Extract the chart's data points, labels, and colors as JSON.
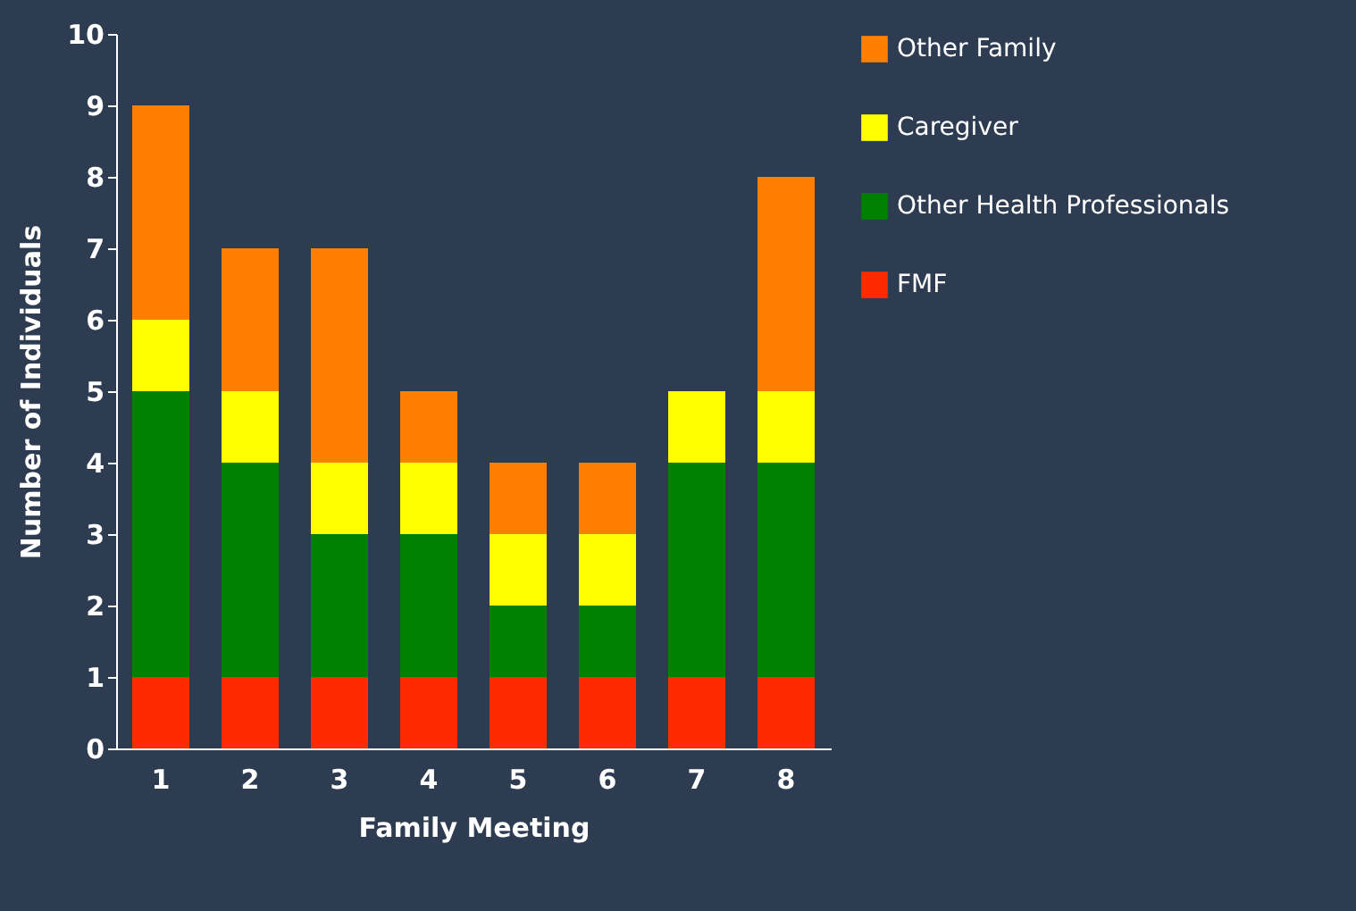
{
  "chart_data": {
    "type": "bar",
    "stacked": true,
    "xlabel": "Family Meeting",
    "ylabel": "Number of Individuals",
    "categories": [
      "1",
      "2",
      "3",
      "4",
      "5",
      "6",
      "7",
      "8"
    ],
    "series": [
      {
        "name": "FMF",
        "color": "#ff2a00",
        "values": [
          1,
          1,
          1,
          1,
          1,
          1,
          1,
          1
        ]
      },
      {
        "name": "Other Health Professionals",
        "color": "#008000",
        "values": [
          4,
          3,
          2,
          2,
          1,
          1,
          3,
          3
        ]
      },
      {
        "name": "Caregiver",
        "color": "#ffff00",
        "values": [
          1,
          1,
          1,
          1,
          1,
          1,
          1,
          1
        ]
      },
      {
        "name": "Other Family",
        "color": "#ff8000",
        "values": [
          3,
          2,
          3,
          1,
          1,
          1,
          0,
          3
        ]
      }
    ],
    "ylim": [
      0,
      10
    ],
    "yticks": [
      0,
      1,
      2,
      3,
      4,
      5,
      6,
      7,
      8,
      9,
      10
    ],
    "grid": false,
    "legend": "right"
  }
}
